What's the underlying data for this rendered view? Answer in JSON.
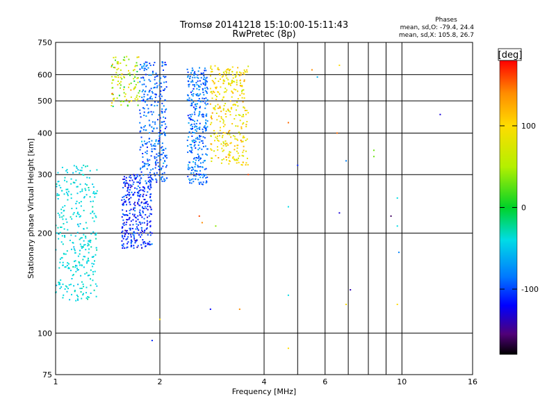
{
  "chart_data": {
    "type": "scatter",
    "title": "Tromsø 20141218 15:10:00-15:11:43",
    "subtitle": "RwPretec (8p)",
    "stats": {
      "heading": "Phases",
      "line1": "mean, sd,O: -79.4, 24.4",
      "line2": "mean, sd,X: 105.8, 26.7"
    },
    "xlabel": "Frequency [MHz]",
    "ylabel": "Stationary phase Virtual Height [km]",
    "x_scale": "log",
    "y_scale": "log",
    "xlim": [
      1,
      16
    ],
    "ylim": [
      75,
      750
    ],
    "xticks": [
      {
        "value": 1,
        "label": "1"
      },
      {
        "value": 2,
        "label": "2"
      },
      {
        "value": 4,
        "label": "4"
      },
      {
        "value": 6,
        "label": "6"
      },
      {
        "value": 10,
        "label": "10"
      },
      {
        "value": 16,
        "label": "16"
      }
    ],
    "x_minor_gridlines": [
      5,
      7,
      8,
      9
    ],
    "yticks": [
      {
        "value": 75,
        "label": "75"
      },
      {
        "value": 100,
        "label": "100"
      },
      {
        "value": 200,
        "label": "200"
      },
      {
        "value": 300,
        "label": "300"
      },
      {
        "value": 400,
        "label": "400"
      },
      {
        "value": 500,
        "label": "500"
      },
      {
        "value": 600,
        "label": "600"
      },
      {
        "value": 750,
        "label": "750"
      }
    ],
    "grid": true,
    "colorbar": {
      "label": "[deg]",
      "range": [
        -180,
        180
      ],
      "ticks": [
        {
          "value": 100,
          "label": "100"
        },
        {
          "value": 0,
          "label": "0"
        },
        {
          "value": -100,
          "label": "-100"
        }
      ]
    },
    "clusters": [
      {
        "id": "o-trace-low",
        "f_range": [
          1.0,
          1.32
        ],
        "h_range": [
          125,
          320
        ],
        "phase": -40,
        "spread": 15,
        "density": "high"
      },
      {
        "id": "o-trace-mid",
        "f_range": [
          1.55,
          1.9
        ],
        "h_range": [
          180,
          300
        ],
        "phase": -110,
        "spread": 35,
        "density": "high"
      },
      {
        "id": "o-trace-f2",
        "f_range": [
          1.75,
          2.1
        ],
        "h_range": [
          280,
          660
        ],
        "phase": -90,
        "spread": 30,
        "density": "high"
      },
      {
        "id": "o-trace-high",
        "f_range": [
          2.4,
          2.75
        ],
        "h_range": [
          280,
          630
        ],
        "phase": -85,
        "spread": 30,
        "density": "high"
      },
      {
        "id": "x-trace",
        "f_range": [
          2.8,
          3.6
        ],
        "h_range": [
          320,
          640
        ],
        "phase": 95,
        "spread": 40,
        "density": "high"
      },
      {
        "id": "upper-echoes",
        "f_range": [
          1.45,
          1.75
        ],
        "h_range": [
          480,
          680
        ],
        "phase": 60,
        "spread": 80,
        "density": "medium"
      }
    ],
    "points": [
      {
        "f": 4.7,
        "h": 430,
        "phase": 150
      },
      {
        "f": 5.0,
        "h": 320,
        "phase": -110
      },
      {
        "f": 4.7,
        "h": 240,
        "phase": -40
      },
      {
        "f": 4.7,
        "h": 130,
        "phase": -40
      },
      {
        "f": 4.7,
        "h": 90,
        "phase": 100
      },
      {
        "f": 6.6,
        "h": 640,
        "phase": 100
      },
      {
        "f": 6.5,
        "h": 400,
        "phase": 150
      },
      {
        "f": 6.9,
        "h": 330,
        "phase": -80
      },
      {
        "f": 6.6,
        "h": 230,
        "phase": -130
      },
      {
        "f": 7.1,
        "h": 135,
        "phase": -140
      },
      {
        "f": 6.9,
        "h": 122,
        "phase": 100
      },
      {
        "f": 8.3,
        "h": 355,
        "phase": 30
      },
      {
        "f": 8.3,
        "h": 340,
        "phase": 30
      },
      {
        "f": 9.3,
        "h": 225,
        "phase": -160
      },
      {
        "f": 9.7,
        "h": 255,
        "phase": -40
      },
      {
        "f": 9.7,
        "h": 210,
        "phase": -40
      },
      {
        "f": 9.8,
        "h": 175,
        "phase": -80
      },
      {
        "f": 9.7,
        "h": 122,
        "phase": 100
      },
      {
        "f": 12.9,
        "h": 455,
        "phase": -130
      },
      {
        "f": 2.6,
        "h": 225,
        "phase": 160
      },
      {
        "f": 2.65,
        "h": 215,
        "phase": 140
      },
      {
        "f": 2.9,
        "h": 210,
        "phase": 40
      },
      {
        "f": 3.6,
        "h": 300,
        "phase": 160
      },
      {
        "f": 2.8,
        "h": 118,
        "phase": -120
      },
      {
        "f": 3.4,
        "h": 118,
        "phase": 140
      },
      {
        "f": 2.0,
        "h": 110,
        "phase": 100
      },
      {
        "f": 1.9,
        "h": 95,
        "phase": -110
      },
      {
        "f": 3.2,
        "h": 350,
        "phase": 90
      },
      {
        "f": 5.5,
        "h": 620,
        "phase": 140
      },
      {
        "f": 5.7,
        "h": 590,
        "phase": -60
      }
    ]
  }
}
